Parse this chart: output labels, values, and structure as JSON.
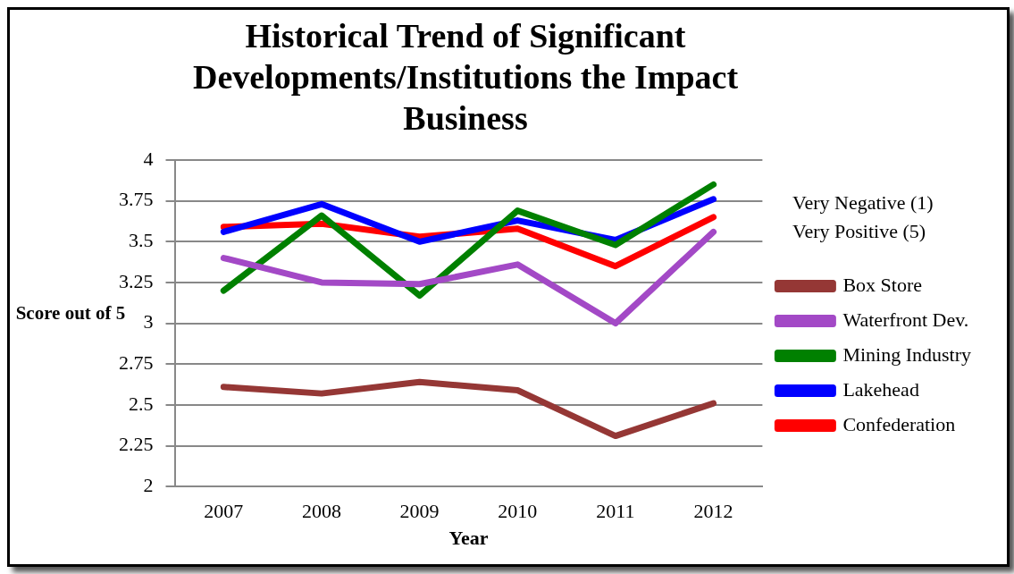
{
  "chart_data": {
    "type": "line",
    "title": "Historical Trend of Significant Developments/Institutions the Impact Business",
    "xlabel": "Year",
    "ylabel": "Score out of 5",
    "annotations": [
      "Very Negative (1)\nVery Positive (5)"
    ],
    "categories": [
      "2007",
      "2008",
      "2009",
      "2010",
      "2011",
      "2012"
    ],
    "ylim": [
      2,
      4
    ],
    "yticks": [
      2,
      2.25,
      2.5,
      2.75,
      3,
      3.25,
      3.5,
      3.75,
      4
    ],
    "grid": "y",
    "legend": "right",
    "marker": "none",
    "line_style": "solid",
    "series": [
      {
        "name": "Box Store",
        "color": "#953735",
        "values": [
          2.61,
          2.57,
          2.64,
          2.59,
          2.31,
          2.51
        ]
      },
      {
        "name": "Waterfront Dev.",
        "color": "#a349c6",
        "values": [
          3.4,
          3.25,
          3.24,
          3.36,
          3.0,
          3.56
        ]
      },
      {
        "name": "Mining Industry",
        "color": "#008000",
        "values": [
          3.2,
          3.66,
          3.17,
          3.69,
          3.48,
          3.85
        ]
      },
      {
        "name": "Lakehead",
        "color": "#0000ff",
        "values": [
          3.56,
          3.73,
          3.5,
          3.63,
          3.51,
          3.76
        ]
      },
      {
        "name": "Confederation",
        "color": "#ff0000",
        "values": [
          3.59,
          3.61,
          3.53,
          3.58,
          3.35,
          3.65
        ]
      }
    ]
  }
}
